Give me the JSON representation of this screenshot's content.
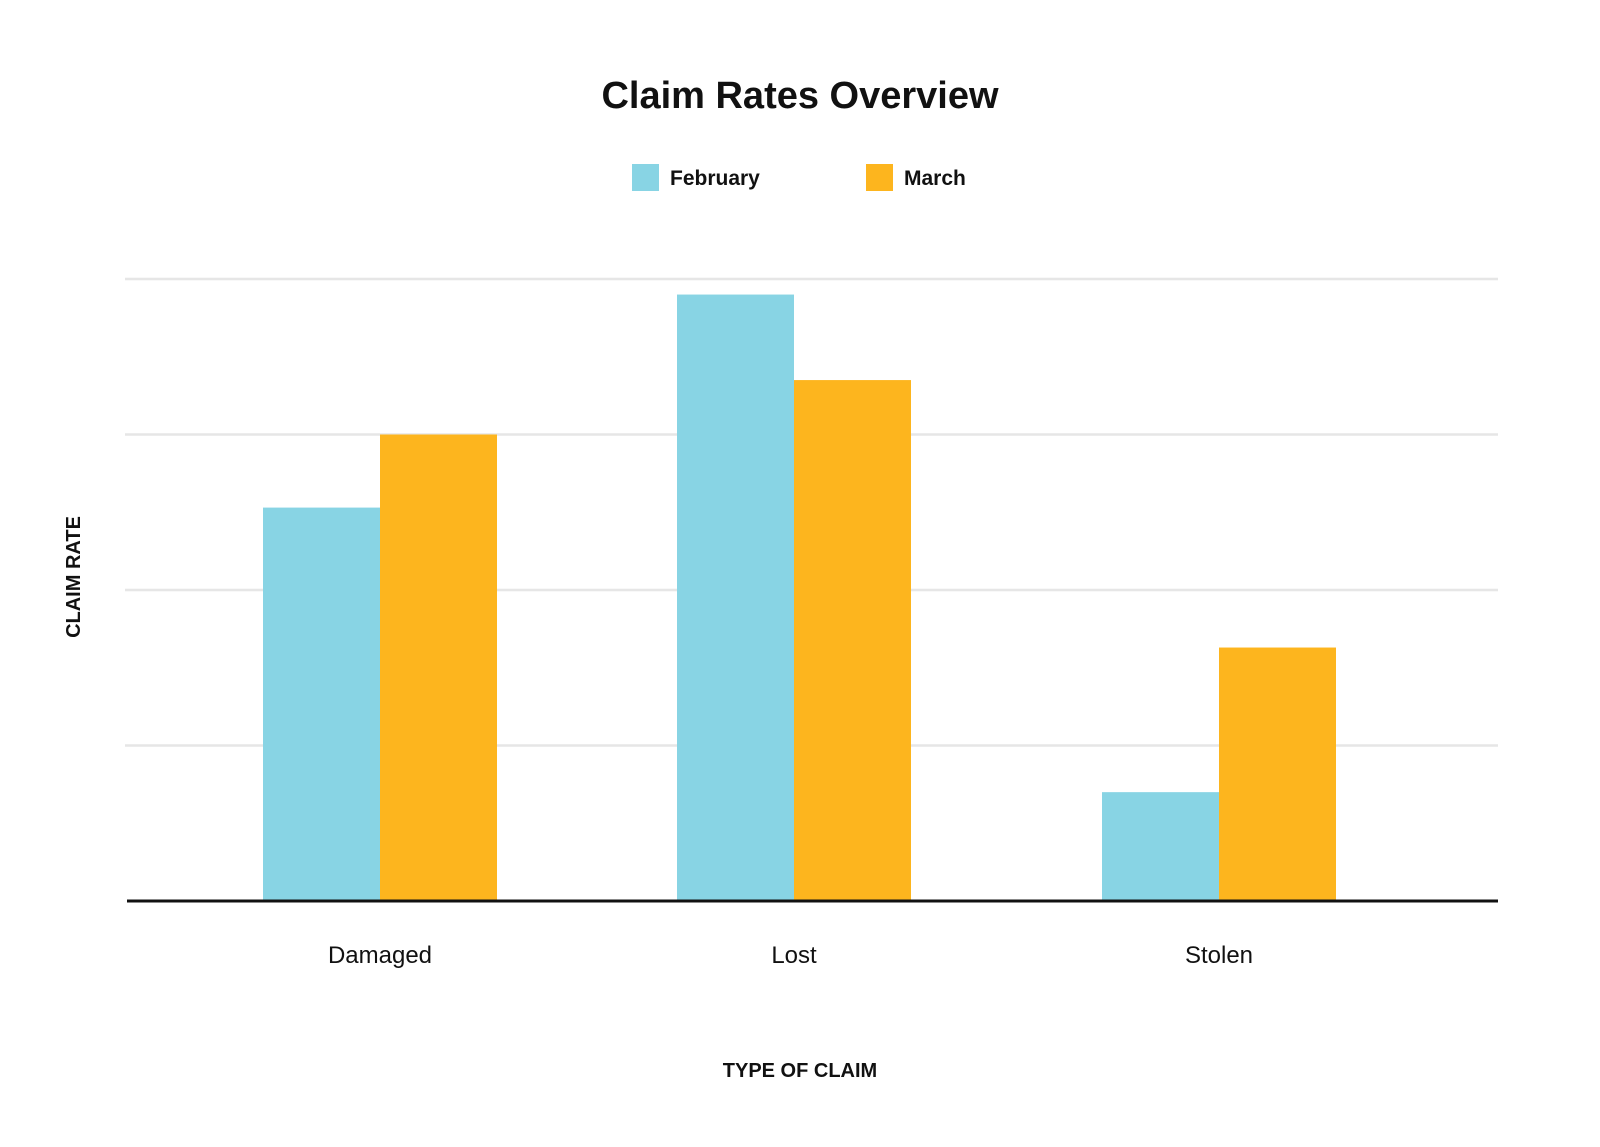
{
  "chart_data": {
    "type": "bar",
    "title": "Claim Rates Overview",
    "xlabel": "TYPE OF CLAIM",
    "ylabel": "CLAIM RATE",
    "categories": [
      "Damaged",
      "Lost",
      "Stolen"
    ],
    "series": [
      {
        "name": "February",
        "color": "#88D4E4",
        "values": [
          2.53,
          3.9,
          0.7
        ]
      },
      {
        "name": "March",
        "color": "#FDB51E",
        "values": [
          3.0,
          3.35,
          1.63
        ]
      }
    ],
    "ylim": [
      0,
      4
    ],
    "y_ticks": [
      0,
      1,
      2,
      3,
      4
    ],
    "y_tick_labels_shown": false,
    "grid": true,
    "grid_color": "#E6E6E6",
    "axis_color": "#111111",
    "legend_position": "top-center"
  }
}
